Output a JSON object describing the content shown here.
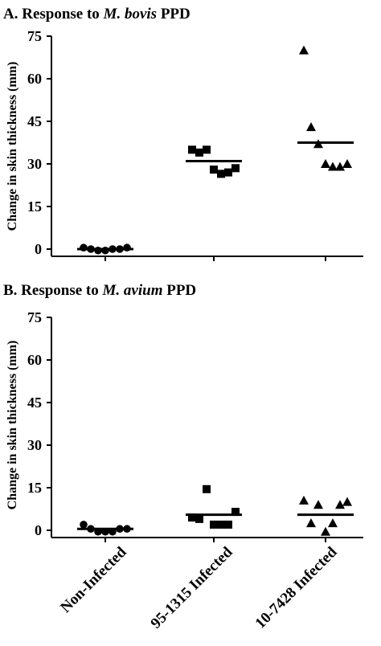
{
  "chart_data": [
    {
      "type": "scatter",
      "title_prefix": "A. Response to ",
      "title_italic": "M. bovis",
      "title_suffix": " PPD",
      "ylabel": "Change in skin thickness (mm)",
      "ylim": [
        0,
        75
      ],
      "yticks": [
        "0",
        "15",
        "30",
        "45",
        "60",
        "75"
      ],
      "categories": [
        "Non-Infected",
        "95-1315 Infected",
        "10-7428 Infected"
      ],
      "series": [
        {
          "category": "Non-Infected",
          "marker": "circle",
          "values": [
            0.5,
            0,
            -0.5,
            -0.5,
            0,
            0,
            0.5
          ],
          "mean": 0
        },
        {
          "category": "95-1315 Infected",
          "marker": "square",
          "values": [
            35,
            34,
            35,
            28,
            26.5,
            27,
            28.5
          ],
          "mean": 31
        },
        {
          "category": "10-7428 Infected",
          "marker": "triangle",
          "values": [
            70,
            43,
            37,
            30,
            29,
            29,
            30
          ],
          "mean": 37.5
        }
      ]
    },
    {
      "type": "scatter",
      "title_prefix": "B. Response to ",
      "title_italic": "M. avium",
      "title_suffix": " PPD",
      "ylabel": "Change in skin thickness (mm)",
      "ylim": [
        0,
        75
      ],
      "yticks": [
        "0",
        "15",
        "30",
        "45",
        "60",
        "75"
      ],
      "categories": [
        "Non-Infected",
        "95-1315 Infected",
        "10-7428 Infected"
      ],
      "series": [
        {
          "category": "Non-Infected",
          "marker": "circle",
          "values": [
            2,
            0.5,
            -0.5,
            -0.5,
            -0.5,
            0.5,
            0.5
          ],
          "mean": 0.5
        },
        {
          "category": "95-1315 Infected",
          "marker": "square",
          "values": [
            4.5,
            4,
            14.5,
            2,
            2,
            2,
            6.5
          ],
          "mean": 5.5
        },
        {
          "category": "10-7428 Infected",
          "marker": "triangle",
          "values": [
            10.5,
            2.5,
            9,
            -0.5,
            2.5,
            9,
            10
          ],
          "mean": 5.5
        }
      ]
    }
  ]
}
